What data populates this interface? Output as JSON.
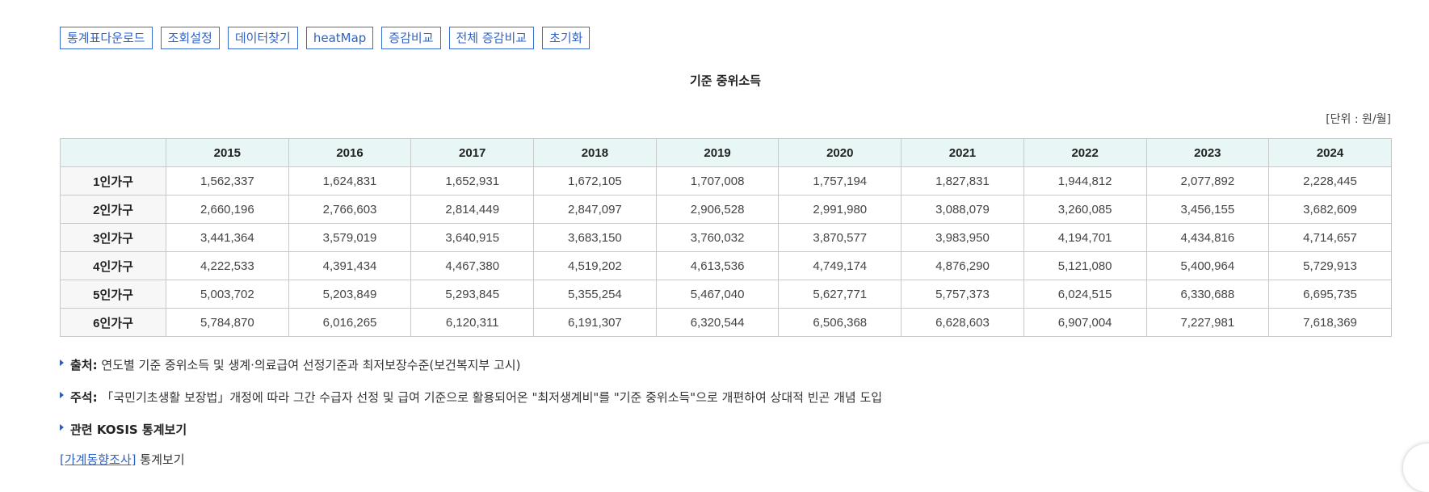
{
  "toolbar": {
    "buttons": [
      "통계표다운로드",
      "조회설정",
      "데이터찾기",
      "heatMap",
      "증감비교",
      "전체 증감비교",
      "초기화"
    ]
  },
  "table_title": "기준 중위소득",
  "unit": "[단위 : 원/월]",
  "table": {
    "corner": "",
    "columns": [
      "2015",
      "2016",
      "2017",
      "2018",
      "2019",
      "2020",
      "2021",
      "2022",
      "2023",
      "2024"
    ],
    "rows": [
      {
        "label": "1인가구",
        "values": [
          "1,562,337",
          "1,624,831",
          "1,652,931",
          "1,672,105",
          "1,707,008",
          "1,757,194",
          "1,827,831",
          "1,944,812",
          "2,077,892",
          "2,228,445"
        ]
      },
      {
        "label": "2인가구",
        "values": [
          "2,660,196",
          "2,766,603",
          "2,814,449",
          "2,847,097",
          "2,906,528",
          "2,991,980",
          "3,088,079",
          "3,260,085",
          "3,456,155",
          "3,682,609"
        ]
      },
      {
        "label": "3인가구",
        "values": [
          "3,441,364",
          "3,579,019",
          "3,640,915",
          "3,683,150",
          "3,760,032",
          "3,870,577",
          "3,983,950",
          "4,194,701",
          "4,434,816",
          "4,714,657"
        ]
      },
      {
        "label": "4인가구",
        "values": [
          "4,222,533",
          "4,391,434",
          "4,467,380",
          "4,519,202",
          "4,613,536",
          "4,749,174",
          "4,876,290",
          "5,121,080",
          "5,400,964",
          "5,729,913"
        ]
      },
      {
        "label": "5인가구",
        "values": [
          "5,003,702",
          "5,203,849",
          "5,293,845",
          "5,355,254",
          "5,467,040",
          "5,627,771",
          "5,757,373",
          "6,024,515",
          "6,330,688",
          "6,695,735"
        ]
      },
      {
        "label": "6인가구",
        "values": [
          "5,784,870",
          "6,016,265",
          "6,120,311",
          "6,191,307",
          "6,320,544",
          "6,506,368",
          "6,628,603",
          "6,907,004",
          "7,227,981",
          "7,618,369"
        ]
      }
    ]
  },
  "notes": {
    "source_label": "출처:",
    "source_text": "연도별 기준 중위소득 및 생계·의료급여 선정기준과 최저보장수준(보건복지부 고시)",
    "comment_label": "주석:",
    "comment_text": "「국민기초생활 보장법」개정에 따라 그간 수급자 선정 및 급여 기준으로 활용되어온 \"최저생계비\"를 \"기준 중위소득\"으로 개편하여 상대적 빈곤 개념 도입",
    "related_label": "관련 KOSIS 통계보기",
    "related_link": "[가계동향조사]",
    "related_link_suffix": "통계보기"
  },
  "colors": {
    "accent": "#2f63c9",
    "header_bg": "#e9f6f6",
    "row_header_bg": "#f7f7f7",
    "border": "#c9c9c9"
  }
}
